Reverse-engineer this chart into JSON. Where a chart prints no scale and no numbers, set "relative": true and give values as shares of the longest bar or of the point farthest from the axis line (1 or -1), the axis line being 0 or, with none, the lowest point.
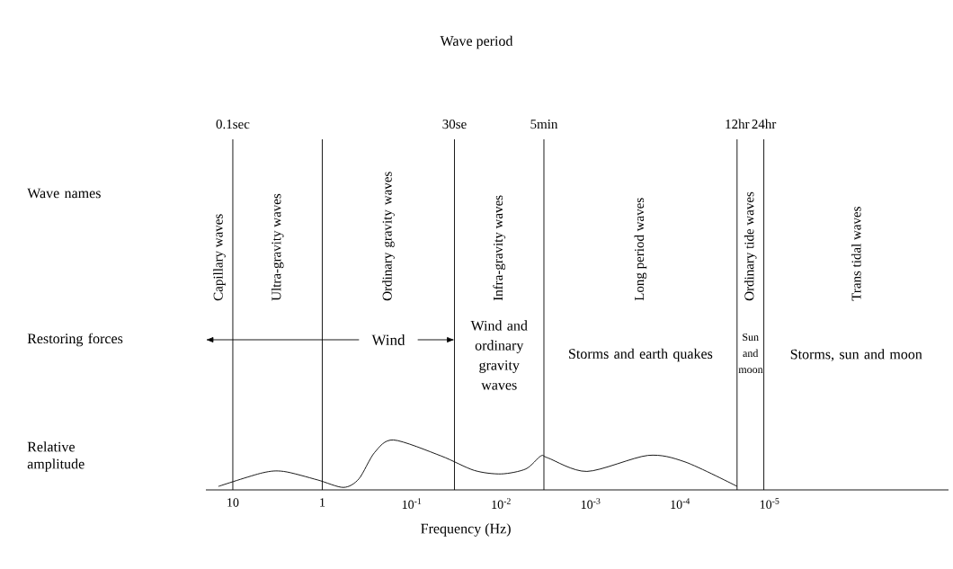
{
  "chart_data": {
    "type": "line",
    "title": "Wave period",
    "xlabel": "Frequency (Hz)",
    "relative": true,
    "log": "x",
    "xlim": [
      20,
      1e-07
    ],
    "xticks": [
      10,
      1,
      {
        "value": 0.1,
        "label": "10$^{-1}$"
      },
      {
        "value": 0.01,
        "label": "10$^{-2}$"
      },
      {
        "value": 0.001,
        "label": "10$^{-3}$"
      },
      {
        "value": 0.0001,
        "label": "10$^{-4}$"
      },
      {
        "value": 1e-05,
        "label": "10$^{-5}$"
      }
    ],
    "x": [
      14.5,
      4.7,
      2.7,
      1.13,
      0.58,
      0.39,
      0.26,
      0.16,
      0.047,
      0.02,
      0.01,
      0.0053,
      0.0036,
      0.003,
      0.0011,
      0.00023,
      8.8e-05,
      2.3e-05
    ],
    "series": [
      {
        "color": "#000000",
        "values": [
          0.07,
          0.34,
          0.37,
          0.2,
          0.05,
          0.22,
          0.75,
          1.0,
          0.68,
          0.39,
          0.32,
          0.42,
          0.68,
          0.64,
          0.37,
          0.69,
          0.56,
          0.07
        ]
      }
    ],
    "ref_lines": [
      {
        "axis": "x",
        "value": 10,
        "label": "0.1sec"
      },
      {
        "axis": "x",
        "value": 1
      },
      {
        "axis": "x",
        "value": 0.0333,
        "label": "30se"
      },
      {
        "axis": "x",
        "value": 0.00333,
        "label": "5min"
      },
      {
        "axis": "x",
        "value": 2.31e-05,
        "label": "12hr"
      },
      {
        "axis": "x",
        "value": 1.16e-05,
        "label": "24hr"
      }
    ],
    "annotations": [
      "Wave names",
      "Restoring forces",
      "Relative amplitude",
      "Capillary waves",
      "Ultra-gravity waves",
      "Ordinary gravity waves",
      "Infra-gravity waves",
      "Long period waves",
      "Ordinary tide waves",
      "Trans tidal waves",
      "Wind",
      "Wind and ordinary gravity waves",
      "Storms and earth quakes",
      "Sun and moon",
      "Storms, sun and moon"
    ]
  }
}
